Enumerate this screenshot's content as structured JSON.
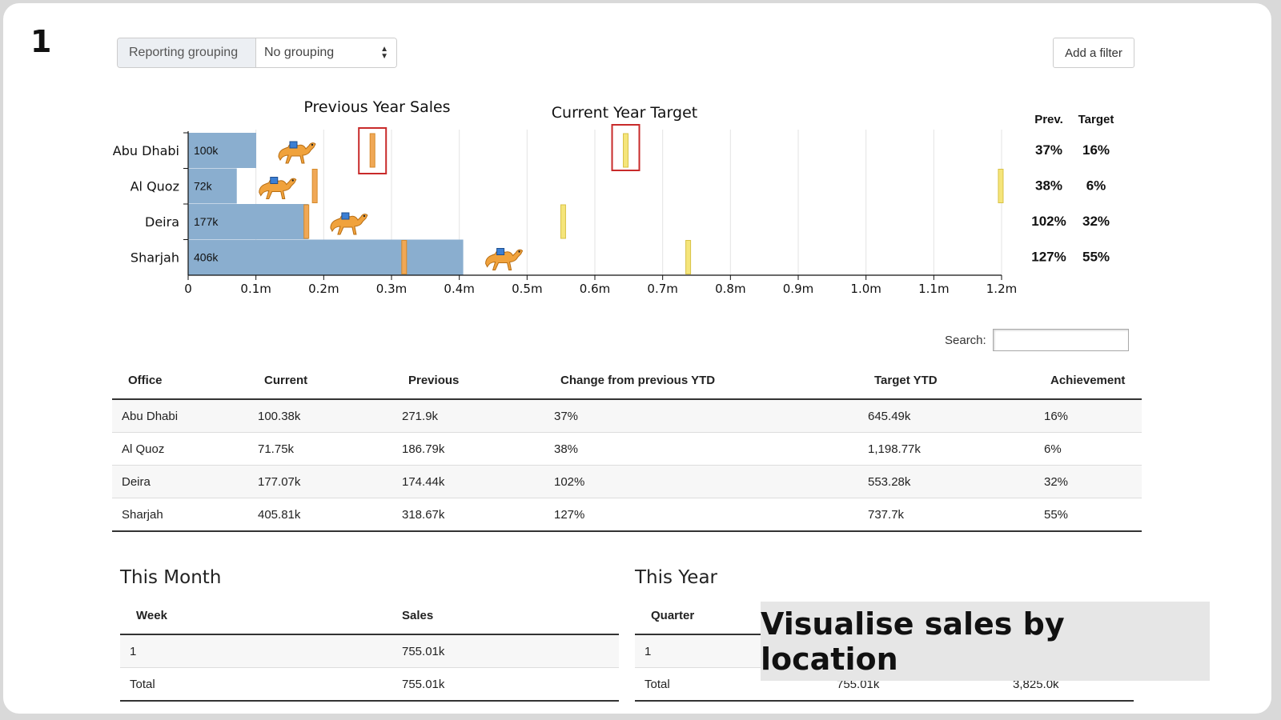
{
  "step_number": "1",
  "grouping": {
    "label": "Reporting grouping",
    "value": "No grouping"
  },
  "filter_button": "Add a filter",
  "search": {
    "label": "Search:",
    "value": ""
  },
  "chart_data": {
    "type": "bar",
    "categories": [
      "Abu Dhabi",
      "Al Quoz",
      "Deira",
      "Sharjah"
    ],
    "bar_labels": [
      "100k",
      "72k",
      "177k",
      "406k"
    ],
    "current": [
      100380,
      71750,
      177070,
      405810
    ],
    "previous": [
      271900,
      186790,
      174440,
      318670
    ],
    "target": [
      645490,
      1198770,
      553280,
      737700
    ],
    "xlim": [
      0,
      1200000
    ],
    "x_ticks": [
      0,
      100000,
      200000,
      300000,
      400000,
      500000,
      600000,
      700000,
      800000,
      900000,
      1000000,
      1100000,
      1200000
    ],
    "x_tick_labels": [
      "0",
      "0.1m",
      "0.2m",
      "0.3m",
      "0.4m",
      "0.5m",
      "0.6m",
      "0.7m",
      "0.8m",
      "0.9m",
      "1.0m",
      "1.1m",
      "1.2m"
    ],
    "grid": true,
    "annotations": {
      "previous": "Previous Year Sales",
      "target": "Current Year Target"
    },
    "pct_headers": {
      "prev": "Prev.",
      "target": "Target"
    },
    "prev_pct": [
      "37%",
      "38%",
      "102%",
      "127%"
    ],
    "target_pct": [
      "16%",
      "6%",
      "32%",
      "55%"
    ],
    "colors": {
      "bar": "#8aaecf",
      "previous_marker": "#f0a856",
      "target_marker": "#f5e57a",
      "highlight": "#c82a2a"
    }
  },
  "main_table": {
    "headers": [
      "Office",
      "Current",
      "Previous",
      "Change from previous YTD",
      "Target YTD",
      "Achievement"
    ],
    "rows": [
      [
        "Abu Dhabi",
        "100.38k",
        "271.9k",
        "37%",
        "645.49k",
        "16%"
      ],
      [
        "Al Quoz",
        "71.75k",
        "186.79k",
        "38%",
        "1,198.77k",
        "6%"
      ],
      [
        "Deira",
        "177.07k",
        "174.44k",
        "102%",
        "553.28k",
        "32%"
      ],
      [
        "Sharjah",
        "405.81k",
        "318.67k",
        "127%",
        "737.7k",
        "55%"
      ]
    ]
  },
  "this_month": {
    "title": "This Month",
    "headers": [
      "Week",
      "Sales"
    ],
    "rows": [
      [
        "1",
        "755.01k"
      ],
      [
        "Total",
        "755.01k"
      ]
    ]
  },
  "this_year": {
    "title": "This Year",
    "headers": [
      "Quarter",
      "",
      ""
    ],
    "rows": [
      [
        "1",
        "",
        ""
      ],
      [
        "Total",
        "755.01k",
        "3,825.0k"
      ]
    ]
  },
  "banner": "Visualise sales by location"
}
